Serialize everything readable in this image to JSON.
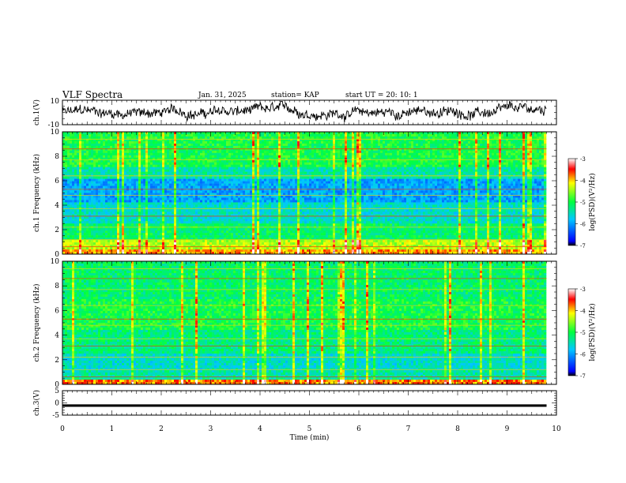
{
  "header": {
    "title": "VLF Spectra",
    "date": "Jan. 31, 2025",
    "station": "station= KAP",
    "start": "start  UT =   20: 10: 1"
  },
  "chart_data": [
    {
      "type": "line",
      "title": "VLF Spectra",
      "ylabel": "ch.1(V)",
      "ylim": [
        -10,
        10
      ],
      "yticks": [
        "10",
        "-10"
      ],
      "series_description": "noisy waveform oscillating roughly between -8 and 8 V over 0-9.8 min"
    },
    {
      "type": "heatmap",
      "ylabel": "ch.1 Frequency (kHz)",
      "xlim": [
        0,
        10
      ],
      "ylim": [
        0,
        10
      ],
      "yticks": [
        "0",
        "2",
        "4",
        "6",
        "8",
        "10"
      ],
      "colorbar": {
        "label": "log(PSD)(V²/Hz)",
        "range": [
          -7,
          -3
        ],
        "ticks": [
          "-3",
          "-4",
          "-5",
          "-6",
          "-7"
        ]
      },
      "data_extent_min": 9.8
    },
    {
      "type": "heatmap",
      "ylabel": "ch.2 Frequency (kHz)",
      "xlim": [
        0,
        10
      ],
      "ylim": [
        0,
        10
      ],
      "yticks": [
        "0",
        "2",
        "4",
        "6",
        "8",
        "10"
      ],
      "colorbar": {
        "label": "log(PSD)(V²/Hz)",
        "range": [
          -7,
          -3
        ],
        "ticks": [
          "-3",
          "-4",
          "-5",
          "-6",
          "-7"
        ]
      },
      "data_extent_min": 9.8
    },
    {
      "type": "line",
      "ylabel": "ch.3(V)",
      "ylim": [
        -5,
        5
      ],
      "yticks": [
        "5",
        "0",
        "-5"
      ],
      "series_description": "thick flat band near -1 V across 0-9.8 min",
      "xlabel": "Time (min)",
      "xticks": [
        "0",
        "1",
        "2",
        "3",
        "4",
        "5",
        "6",
        "7",
        "8",
        "9",
        "10"
      ]
    }
  ],
  "colors": {
    "axis": "#000000",
    "trace": "#000000"
  }
}
